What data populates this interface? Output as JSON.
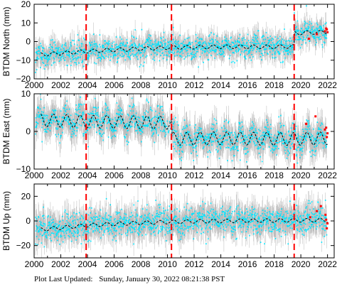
{
  "footer": {
    "label": "Plot Last Updated:",
    "timestamp": "Sunday, January 30, 2022 08:21:38 PST"
  },
  "colors": {
    "error_bars": "#b8b8b8",
    "data": "#00e5ff",
    "model": "#000000",
    "offsets": "#ff0000",
    "recent": "#ff0000"
  },
  "chart_data": [
    {
      "type": "scatter",
      "ylabel": "BTDM North (mm)",
      "xlim": [
        2000,
        2022.5
      ],
      "ylim": [
        -20,
        20
      ],
      "x_ticks": [
        2000,
        2002,
        2004,
        2006,
        2008,
        2010,
        2012,
        2014,
        2016,
        2018,
        2020,
        2022
      ],
      "y_ticks": [
        -20,
        -10,
        0,
        10,
        20
      ],
      "show_x_tick_labels": true,
      "offsets": [
        2003.9,
        2010.3,
        2019.5
      ],
      "model": [
        [
          2000.5,
          -7
        ],
        [
          2004,
          -5.2
        ],
        [
          2008,
          -3.8
        ],
        [
          2010.3,
          -3.2
        ],
        [
          2014,
          -2.8
        ],
        [
          2018,
          -2.8
        ],
        [
          2019.5,
          -2.6
        ],
        [
          2019.5,
          4.5
        ],
        [
          2022,
          5.2
        ]
      ],
      "season_amp": 1.0,
      "scatter_sd": 3.0,
      "errbar": 4.5,
      "recent_points": [
        [
          2021.9,
          7
        ],
        [
          2022.0,
          5
        ],
        [
          2021.95,
          6.5
        ],
        [
          2021.2,
          4
        ],
        [
          2020.6,
          1.5
        ],
        [
          2021.8,
          5.5
        ]
      ]
    },
    {
      "type": "scatter",
      "ylabel": "BTDM East (mm)",
      "xlim": [
        2000,
        2022.5
      ],
      "ylim": [
        -10,
        10
      ],
      "x_ticks": [
        2000,
        2002,
        2004,
        2006,
        2008,
        2010,
        2012,
        2014,
        2016,
        2018,
        2020,
        2022
      ],
      "y_ticks": [
        -10,
        0,
        10
      ],
      "show_x_tick_labels": true,
      "offsets": [
        2003.9,
        2010.3,
        2019.5
      ],
      "model": [
        [
          2000.5,
          3
        ],
        [
          2004,
          2.6
        ],
        [
          2008,
          2.4
        ],
        [
          2010.3,
          2.3
        ],
        [
          2010.3,
          -2
        ],
        [
          2014,
          -1.8
        ],
        [
          2018,
          -2
        ],
        [
          2019.5,
          -2
        ],
        [
          2022,
          -1.8
        ]
      ],
      "season_amp": 1.7,
      "scatter_sd": 1.8,
      "errbar": 3.0,
      "recent_points": [
        [
          2021.9,
          1
        ],
        [
          2022.0,
          -0.5
        ],
        [
          2021.8,
          0.5
        ],
        [
          2021.1,
          4
        ],
        [
          2020.4,
          2
        ],
        [
          2021.95,
          -1.5
        ]
      ]
    },
    {
      "type": "scatter",
      "ylabel": "BTDM Up (mm)",
      "xlim": [
        2000,
        2022.5
      ],
      "ylim": [
        -30,
        30
      ],
      "x_ticks": [
        2000,
        2002,
        2004,
        2006,
        2008,
        2010,
        2012,
        2014,
        2016,
        2018,
        2020,
        2022
      ],
      "y_ticks": [
        -20,
        0,
        20
      ],
      "show_x_tick_labels": true,
      "offsets": [
        2003.9,
        2010.3,
        2019.5
      ],
      "model": [
        [
          2000.5,
          -7
        ],
        [
          2004,
          -3.5
        ],
        [
          2008,
          -1.5
        ],
        [
          2012,
          -0.3
        ],
        [
          2016,
          0.2
        ],
        [
          2020,
          0.5
        ],
        [
          2022,
          0.6
        ]
      ],
      "season_amp": 1.5,
      "scatter_sd": 5.5,
      "errbar": 9.0,
      "recent_points": [
        [
          2021.9,
          1
        ],
        [
          2022.0,
          -2
        ],
        [
          2021.85,
          5
        ],
        [
          2021.2,
          8
        ],
        [
          2020.7,
          3
        ],
        [
          2021.95,
          -6
        ],
        [
          2021.5,
          12
        ]
      ]
    }
  ]
}
